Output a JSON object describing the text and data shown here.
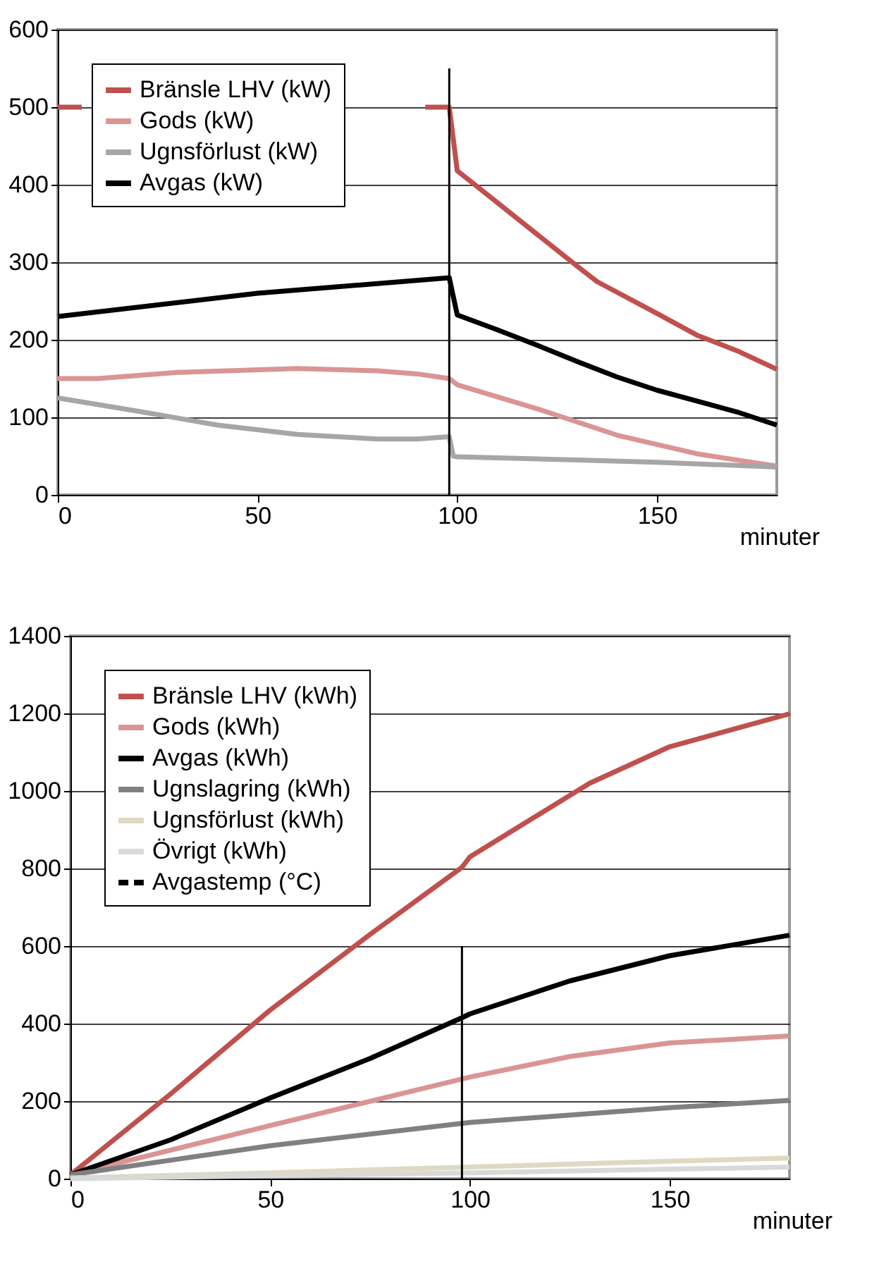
{
  "chart_data": [
    {
      "type": "line",
      "xlabel": "minuter",
      "xlim": [
        0,
        180
      ],
      "xticks": [
        0,
        50,
        100,
        150
      ],
      "ylim": [
        0,
        600
      ],
      "yticks": [
        0,
        100,
        200,
        300,
        400,
        500,
        600
      ],
      "grid": "y",
      "legend": "top left",
      "series": [
        {
          "name": "Bränsle LHV (kW)",
          "color": "#c0504d",
          "x": [
            0,
            6,
            50,
            92,
            98,
            100,
            110,
            120,
            130,
            135,
            150,
            160,
            170,
            180
          ],
          "values": [
            500,
            500,
            null,
            500,
            500,
            418,
            377,
            336,
            295,
            275,
            234,
            206,
            186,
            162
          ]
        },
        {
          "name": "Gods (kW)",
          "color": "#d99594",
          "x": [
            0,
            10,
            30,
            60,
            80,
            90,
            98,
            100,
            120,
            140,
            160,
            180
          ],
          "values": [
            150,
            150,
            158,
            163,
            160,
            156,
            150,
            142,
            111,
            77,
            53,
            37
          ]
        },
        {
          "name": "Ugnsförlust (kW)",
          "color": "#a6a6a6",
          "x": [
            0,
            20,
            40,
            60,
            80,
            90,
            98,
            99,
            100,
            130,
            150,
            180
          ],
          "values": [
            125,
            108,
            90,
            78,
            72,
            72,
            75,
            50,
            49,
            45,
            42,
            36
          ]
        },
        {
          "name": "Avgas (kW)",
          "color": "#000000",
          "x": [
            0,
            50,
            98,
            100,
            110,
            120,
            130,
            140,
            150,
            160,
            170,
            180
          ],
          "values": [
            230,
            260,
            280,
            232,
            213,
            193,
            172,
            152,
            135,
            121,
            107,
            90
          ]
        },
        {
          "color": "#000000",
          "x": [
            98,
            98
          ],
          "values": [
            0,
            550
          ]
        }
      ]
    },
    {
      "type": "line",
      "xlabel": "minuter",
      "xlim": [
        0,
        180
      ],
      "xticks": [
        0,
        50,
        100,
        150
      ],
      "ylim": [
        0,
        1400
      ],
      "yticks": [
        0,
        200,
        400,
        600,
        800,
        1000,
        1200,
        1400
      ],
      "grid": "y",
      "legend": "top left",
      "series": [
        {
          "name": "Bränsle LHV (kWh)",
          "color": "#c0504d",
          "x": [
            0,
            25,
            50,
            75,
            98,
            100,
            130,
            150,
            180
          ],
          "values": [
            10,
            218,
            435,
            630,
            803,
            830,
            1020,
            1114,
            1199
          ]
        },
        {
          "name": "Gods (kWh)",
          "color": "#d99594",
          "x": [
            0,
            50,
            100,
            125,
            150,
            180
          ],
          "values": [
            10,
            137,
            262,
            315,
            350,
            368
          ]
        },
        {
          "name": "Avgas (kWh)",
          "color": "#000000",
          "x": [
            0,
            25,
            50,
            75,
            98,
            100,
            125,
            150,
            180
          ],
          "values": [
            10,
            100,
            208,
            310,
            415,
            425,
            510,
            575,
            628
          ]
        },
        {
          "name": "Ugnslagring (kWh)",
          "color": "#808080",
          "x": [
            0,
            50,
            100,
            150,
            180
          ],
          "values": [
            10,
            85,
            145,
            183,
            202
          ]
        },
        {
          "name": "Ugnsförlust (kWh)",
          "color": "#ddd9c3",
          "x": [
            0,
            50,
            100,
            150,
            180
          ],
          "values": [
            2,
            15,
            30,
            45,
            53
          ]
        },
        {
          "name": "Övrigt (kWh)",
          "color": "#d9d9d9",
          "x": [
            0,
            100,
            180
          ],
          "values": [
            0,
            15,
            30
          ]
        },
        {
          "name": "Avgastemp (°C)",
          "color": "#000000",
          "line_style": "dashed"
        },
        {
          "color": "#000000",
          "x": [
            98,
            98
          ],
          "values": [
            0,
            600
          ]
        }
      ]
    }
  ]
}
